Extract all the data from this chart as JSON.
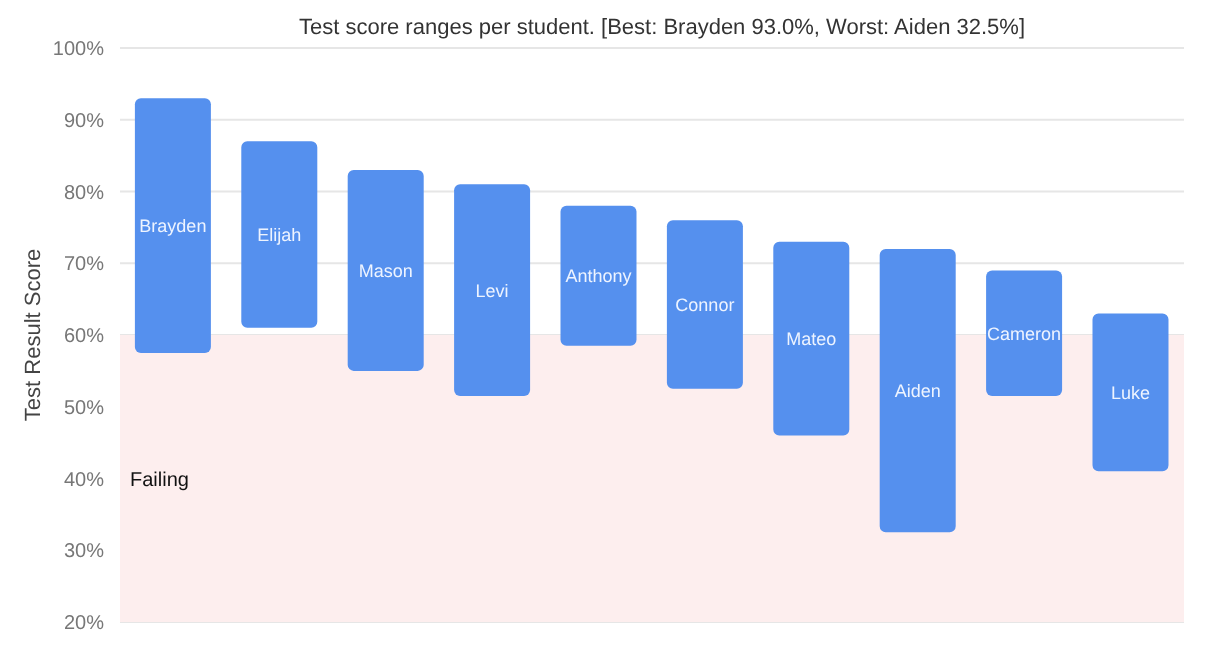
{
  "chart_data": {
    "type": "bar",
    "title": "Test score ranges per student. [Best: Brayden 93.0%, Worst: Aiden 32.5%]",
    "ylabel": "Test Result Score",
    "categories": [
      "Brayden",
      "Elijah",
      "Mason",
      "Levi",
      "Anthony",
      "Connor",
      "Mateo",
      "Aiden",
      "Cameron",
      "Luke"
    ],
    "base": [
      57.5,
      61,
      55,
      51.5,
      58.5,
      52.5,
      46,
      32.5,
      51.5,
      41
    ],
    "values": [
      35.5,
      26,
      28,
      29.5,
      19.5,
      23.5,
      27,
      39.5,
      17.5,
      22
    ],
    "color": "#5590ee",
    "ylim": [
      20,
      100
    ],
    "yticks": [
      {
        "value": 20,
        "label": "20%"
      },
      {
        "value": 30,
        "label": "30%"
      },
      {
        "value": 40,
        "label": "40%"
      },
      {
        "value": 50,
        "label": "50%"
      },
      {
        "value": 60,
        "label": "60%"
      },
      {
        "value": 70,
        "label": "70%"
      },
      {
        "value": 80,
        "label": "80%"
      },
      {
        "value": 90,
        "label": "90%"
      },
      {
        "value": 100,
        "label": "100%"
      }
    ],
    "grid": "y",
    "tick_labels": "y",
    "bands": [
      {
        "axis": "y",
        "from": 20,
        "to": 60,
        "label": "Failing",
        "color": "#fdeeee"
      }
    ]
  }
}
